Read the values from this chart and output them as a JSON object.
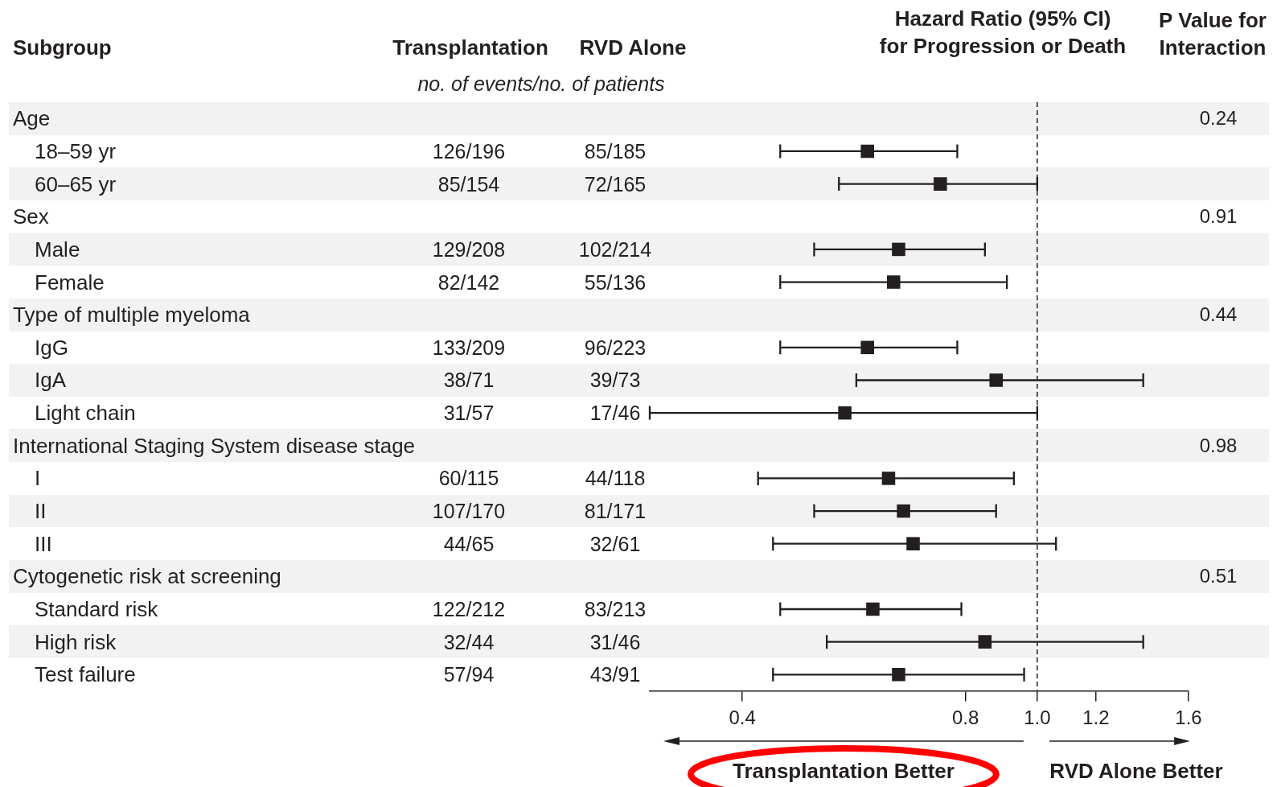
{
  "chart_data": [
    {
      "type": "scatter",
      "orientation": "horizontal",
      "title": "Hazard Ratio (95% CI) for Progression or Death",
      "categories": [
        null,
        null,
        null,
        null,
        null,
        null,
        null,
        null,
        null,
        null,
        null,
        null,
        null,
        null,
        null,
        null,
        null,
        null
      ],
      "values": [
        null,
        0.59,
        0.74,
        null,
        0.65,
        0.64,
        null,
        0.59,
        0.88,
        0.55,
        null,
        0.63,
        0.66,
        0.68,
        null,
        0.6,
        0.85,
        0.65
      ],
      "errors": [
        null,
        [
          0.45,
          0.78
        ],
        [
          0.54,
          1.0
        ],
        null,
        [
          0.5,
          0.85
        ],
        [
          0.45,
          0.91
        ],
        null,
        [
          0.45,
          0.78
        ],
        [
          0.57,
          1.39
        ],
        [
          0.3,
          1.0
        ],
        null,
        [
          0.42,
          0.93
        ],
        [
          0.5,
          0.88
        ],
        [
          0.44,
          1.06
        ],
        null,
        [
          0.45,
          0.79
        ],
        [
          0.52,
          1.39
        ],
        [
          0.44,
          0.96
        ]
      ],
      "color": "#231f20",
      "marker": "square",
      "log": "x",
      "xlim": [
        0.3,
        1.6
      ],
      "xticks": [
        0.4,
        0.8,
        {
          "value": 1,
          "label": "1.0"
        },
        1.2,
        1.6
      ],
      "ref_lines": [
        {
          "axis": "x",
          "value": 1,
          "line_style": "dashed"
        }
      ],
      "annotations": [
        "Transplantation Better",
        "RVD Alone Better"
      ]
    },
    {
      "type": "other",
      "title": "Subgroup",
      "categories": [
        "Age",
        null,
        null,
        "Sex",
        null,
        null,
        "Type of multiple myeloma",
        null,
        null,
        null,
        "International Staging System disease stage",
        null,
        null,
        null,
        "Cytogenetic risk at screening",
        null,
        null,
        null
      ]
    },
    {
      "type": "other",
      "categories": [
        null,
        "18–59 yr",
        "60–65 yr",
        null,
        "Male",
        "Female",
        null,
        "IgG",
        "IgA",
        "Light chain",
        null,
        "I",
        "II",
        "III",
        null,
        "Standard risk",
        "High risk",
        "Test failure"
      ]
    },
    {
      "type": "other",
      "title": "Transplantation",
      "subtitle": "no. of events/no. of patients",
      "categories": [
        null,
        "126/196",
        "85/154",
        null,
        "129/208",
        "82/142",
        null,
        "133/209",
        "38/71",
        "31/57",
        null,
        "60/115",
        "107/170",
        "44/65",
        null,
        "122/212",
        "32/44",
        "57/94"
      ]
    },
    {
      "type": "other",
      "title": "RVD Alone",
      "categories": [
        null,
        "85/185",
        "72/165",
        null,
        "102/214",
        "55/136",
        null,
        "96/223",
        "39/73",
        "17/46",
        null,
        "44/118",
        "81/171",
        "32/61",
        null,
        "83/213",
        "31/46",
        "43/91"
      ]
    },
    {
      "type": "other",
      "title": "P Value for Interaction",
      "categories": [
        "0.24",
        null,
        null,
        "0.91",
        null,
        null,
        "0.44",
        null,
        null,
        null,
        "0.98",
        null,
        null,
        null,
        "0.51",
        null,
        null,
        null
      ]
    }
  ]
}
